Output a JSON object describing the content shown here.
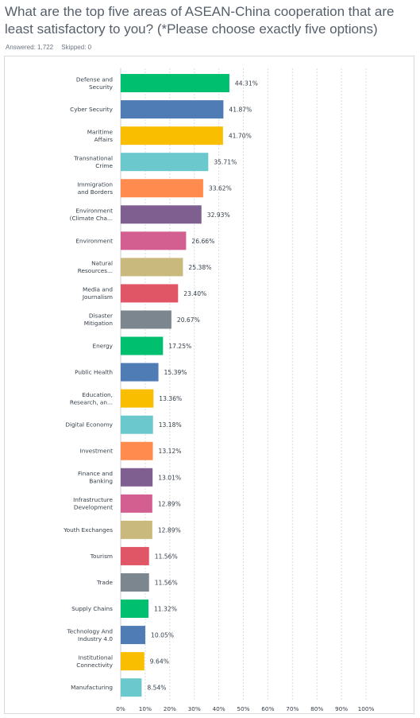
{
  "question": {
    "title": "What are the top five areas of ASEAN-China cooperation that are least satisfactory to you? (*Please choose exactly five options)",
    "answered": "Answered: 1,722",
    "skipped": "Skipped: 0"
  },
  "chart_data": {
    "type": "bar",
    "orientation": "horizontal",
    "categories": [
      [
        "Defense and",
        "Security"
      ],
      [
        "Cyber Security"
      ],
      [
        "Maritime",
        "Affairs"
      ],
      [
        "Transnational",
        "Crime"
      ],
      [
        "Immigration",
        "and Borders"
      ],
      [
        "Environment",
        "(Climate Cha..."
      ],
      [
        "Environment"
      ],
      [
        "Natural",
        "Resources..."
      ],
      [
        "Media and",
        "Journalism"
      ],
      [
        "Disaster",
        "Mitigation"
      ],
      [
        "Energy"
      ],
      [
        "Public Health"
      ],
      [
        "Education,",
        "Research, an..."
      ],
      [
        "Digital Economy"
      ],
      [
        "Investment"
      ],
      [
        "Finance and",
        "Banking"
      ],
      [
        "Infrastructure",
        "Development"
      ],
      [
        "Youth Exchanges"
      ],
      [
        "Tourism"
      ],
      [
        "Trade"
      ],
      [
        "Supply Chains"
      ],
      [
        "Technology And",
        "Industry 4.0"
      ],
      [
        "Institutional",
        "Connectivity"
      ],
      [
        "Manufacturing"
      ]
    ],
    "values": [
      44.31,
      41.87,
      41.7,
      35.71,
      33.62,
      32.93,
      26.66,
      25.38,
      23.4,
      20.67,
      17.25,
      15.39,
      13.36,
      13.18,
      13.12,
      13.01,
      12.89,
      12.89,
      11.56,
      11.56,
      11.32,
      10.05,
      9.64,
      8.54
    ],
    "value_labels": [
      "44.31%",
      "41.87%",
      "41.70%",
      "35.71%",
      "33.62%",
      "32.93%",
      "26.66%",
      "25.38%",
      "23.40%",
      "20.67%",
      "17.25%",
      "15.39%",
      "13.36%",
      "13.18%",
      "13.12%",
      "13.01%",
      "12.89%",
      "12.89%",
      "11.56%",
      "11.56%",
      "11.32%",
      "10.05%",
      "9.64%",
      "8.54%"
    ],
    "colors": [
      "#00bf6f",
      "#507cb6",
      "#f9be00",
      "#6bc8cd",
      "#ff8b4f",
      "#7f5f90",
      "#d25f90",
      "#c9b97d",
      "#e05666",
      "#7c868f"
    ],
    "xlim": [
      0,
      100
    ],
    "xticks": [
      "0%",
      "10%",
      "20%",
      "30%",
      "40%",
      "50%",
      "60%",
      "70%",
      "80%",
      "90%",
      "100%"
    ],
    "grid": true
  }
}
